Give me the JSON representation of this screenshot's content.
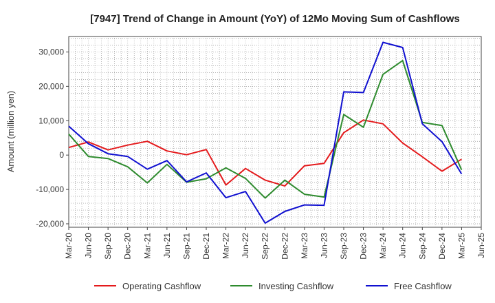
{
  "chart_data": {
    "type": "line",
    "title": "[7947]  Trend of Change in Amount (YoY) of 12Mo Moving Sum of Cashflows",
    "xlabel": "",
    "ylabel": "Amount (million yen)",
    "ylim": [
      -21000,
      34500
    ],
    "yticks": [
      -20000,
      -10000,
      0,
      10000,
      20000,
      30000
    ],
    "ytick_labels": [
      "-20,000",
      "-10,000",
      "0",
      "10,000",
      "20,000",
      "30,000"
    ],
    "grid": true,
    "legend_position": "bottom",
    "categories": [
      "Mar-20",
      "Jun-20",
      "Sep-20",
      "Dec-20",
      "Mar-21",
      "Jun-21",
      "Sep-21",
      "Dec-21",
      "Mar-22",
      "Jun-22",
      "Sep-22",
      "Dec-22",
      "Mar-23",
      "Jun-23",
      "Sep-23",
      "Dec-23",
      "Mar-24",
      "Jun-24",
      "Sep-24",
      "Dec-24",
      "Mar-25",
      "Jun-25"
    ],
    "series": [
      {
        "name": "Operating Cashflow",
        "color": "#e41a1c",
        "values": [
          2200,
          3800,
          1500,
          2900,
          4000,
          1200,
          100,
          1600,
          -8700,
          -3900,
          -7300,
          -9000,
          -3100,
          -2400,
          6500,
          10200,
          9100,
          3500,
          -500,
          -4700,
          -1200,
          null
        ]
      },
      {
        "name": "Investing Cashflow",
        "color": "#2e8b2e",
        "values": [
          6100,
          -400,
          -1000,
          -3400,
          -8100,
          -2700,
          -7900,
          -6900,
          -3700,
          -6800,
          -12500,
          -7300,
          -11400,
          -12200,
          11800,
          8100,
          23500,
          27500,
          9500,
          8600,
          -4300,
          null
        ]
      },
      {
        "name": "Free Cashflow",
        "color": "#1010d0",
        "values": [
          8400,
          3300,
          400,
          -400,
          -4100,
          -1600,
          -7800,
          -5200,
          -12400,
          -10600,
          -19800,
          -16400,
          -14500,
          -14600,
          18400,
          18200,
          32800,
          31300,
          9100,
          3900,
          -5500,
          null
        ]
      }
    ]
  }
}
